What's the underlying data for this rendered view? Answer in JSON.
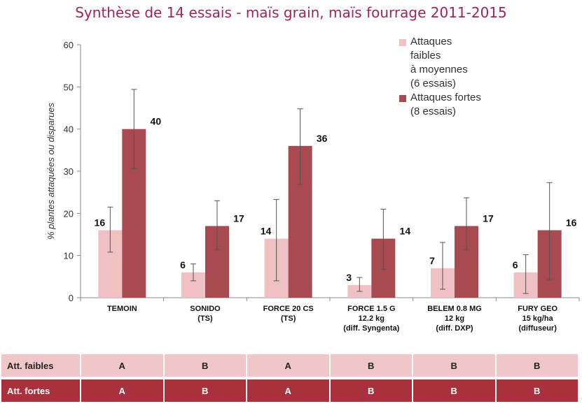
{
  "title": "Synthèse de 14 essais  - maïs grain, maïs fourrage 2011-2015",
  "legend": {
    "faibles": "Attaques\nfaibles\nà moyennes\n(6 essais)",
    "fortes": "Attaques fortes\n(8 essais)"
  },
  "colors": {
    "faibles": "#efc1c3",
    "fortes": "#a84a50",
    "axis_text": "#333333"
  },
  "chart_data": {
    "type": "bar",
    "categories": [
      [
        "TEMOIN"
      ],
      [
        "SONIDO",
        "(TS)"
      ],
      [
        "FORCE 20 CS",
        "(TS)"
      ],
      [
        "FORCE 1.5 G",
        "12.2 kg",
        "(diff. Syngenta)"
      ],
      [
        "BELEM 0.8 MG",
        "12 kg",
        "(diff. DXP)"
      ],
      [
        "FURY GEO",
        "15 kg/ha",
        "(diffuseur)"
      ]
    ],
    "series": [
      {
        "name": "Attaques faibles à moyennes (6 essais)",
        "values": [
          16,
          6,
          14,
          3,
          7,
          6
        ],
        "error_low": [
          10.8,
          4,
          4,
          1.5,
          2,
          1
        ],
        "error_high": [
          21.5,
          8,
          23.3,
          4.8,
          13.1,
          10.2
        ]
      },
      {
        "name": "Attaques fortes (8 essais)",
        "values": [
          40,
          17,
          36,
          14,
          17,
          16
        ],
        "error_low": [
          30.6,
          11.4,
          26.9,
          6.7,
          11.4,
          4.3
        ],
        "error_high": [
          49.4,
          23,
          44.8,
          21,
          23.7,
          27.3
        ]
      }
    ],
    "ylabel": "% plantes attaquées ou disparues",
    "ylim": [
      0,
      60
    ],
    "yticks": [
      0,
      10,
      20,
      30,
      40,
      50,
      60
    ],
    "grid": false,
    "legend_position": "top-right"
  },
  "grades_table": {
    "rows": [
      {
        "label": "Att. faibles",
        "values": [
          "A",
          "B",
          "A",
          "B",
          "B",
          "B"
        ]
      },
      {
        "label": "Att. fortes",
        "values": [
          "A",
          "B",
          "A",
          "B",
          "B",
          "B"
        ]
      }
    ]
  }
}
